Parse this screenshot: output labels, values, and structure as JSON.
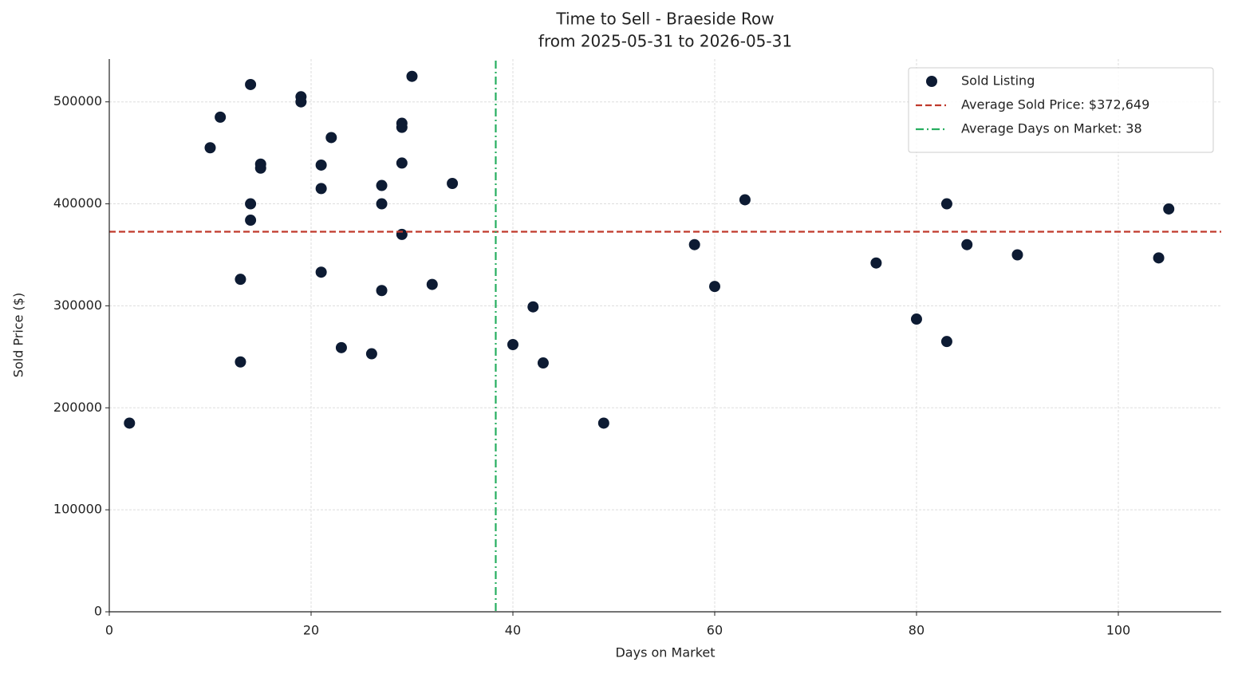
{
  "chart_data": {
    "type": "scatter",
    "title": "Time to Sell - Braeside Row",
    "subtitle": "from 2025-05-31 to 2026-05-31",
    "xlabel": "Days on Market",
    "ylabel": "Sold Price ($)",
    "xlim": [
      0,
      110.2
    ],
    "xticks": [
      0,
      20,
      40,
      60,
      80,
      100
    ],
    "ylim": [
      0,
      542000
    ],
    "yticks": [
      0,
      100000,
      200000,
      300000,
      400000,
      500000
    ],
    "grid": true,
    "legend": "upper right",
    "series": [
      {
        "name": "Sold Listing",
        "color": "#0d1b33",
        "x": [
          2,
          10,
          11,
          13,
          13,
          14,
          14,
          14,
          15,
          15,
          19,
          19,
          21,
          21,
          21,
          22,
          23,
          26,
          27,
          27,
          27,
          29,
          29,
          29,
          29,
          30,
          32,
          34,
          40,
          42,
          43,
          49,
          58,
          60,
          63,
          76,
          80,
          83,
          83,
          85,
          90,
          104,
          105
        ],
        "values": [
          185000,
          455000,
          485000,
          326000,
          245000,
          517000,
          400000,
          384000,
          439000,
          435000,
          505000,
          500000,
          438000,
          415000,
          333000,
          465000,
          259000,
          253000,
          418000,
          400000,
          315000,
          479000,
          475000,
          440000,
          370000,
          525000,
          321000,
          420000,
          262000,
          299000,
          244000,
          185000,
          360000,
          319000,
          404000,
          342000,
          287000,
          400000,
          265000,
          360000,
          350000,
          347000,
          395000
        ]
      }
    ],
    "hlines": [
      {
        "name": "Average Sold Price: $372,649",
        "value": 372649,
        "color": "#c0392b",
        "style": "dashed"
      }
    ],
    "vlines": [
      {
        "name": "Average Days on Market: 38",
        "value": 38.3,
        "color": "#27ae60",
        "style": "dashdot"
      }
    ]
  }
}
